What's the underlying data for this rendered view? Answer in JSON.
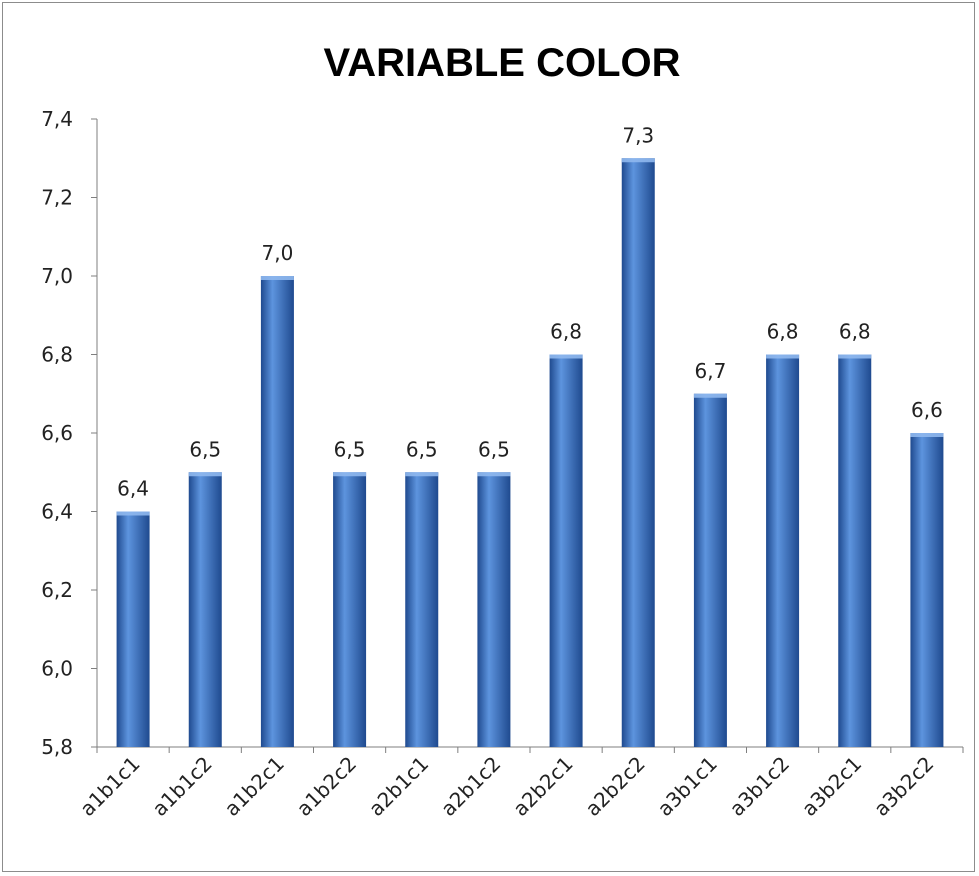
{
  "chart_data": {
    "type": "bar",
    "title": "VARIABLE COLOR",
    "xlabel": "",
    "ylabel": "",
    "categories": [
      "a1b1c1",
      "a1b1c2",
      "a1b2c1",
      "a1b2c2",
      "a2b1c1",
      "a2b1c2",
      "a2b2c1",
      "a2b2c2",
      "a3b1c1",
      "a3b1c2",
      "a3b2c1",
      "a3b2c2"
    ],
    "values": [
      6.4,
      6.5,
      7.0,
      6.5,
      6.5,
      6.5,
      6.8,
      7.3,
      6.7,
      6.8,
      6.8,
      6.6
    ],
    "value_labels": [
      "6,4",
      "6,5",
      "7,0",
      "6,5",
      "6,5",
      "6,5",
      "6,8",
      "7,3",
      "6,7",
      "6,8",
      "6,8",
      "6,6"
    ],
    "ylim": [
      5.8,
      7.4
    ],
    "yticks": [
      "5,8",
      "6,0",
      "6,2",
      "6,4",
      "6,6",
      "6,8",
      "7,0",
      "7,2",
      "7,4"
    ],
    "grid": false,
    "legend": "none",
    "bar_color": "#3a6fc0",
    "bar_color_dark": "#1f4a8f",
    "bar_color_light": "#5d94de"
  }
}
